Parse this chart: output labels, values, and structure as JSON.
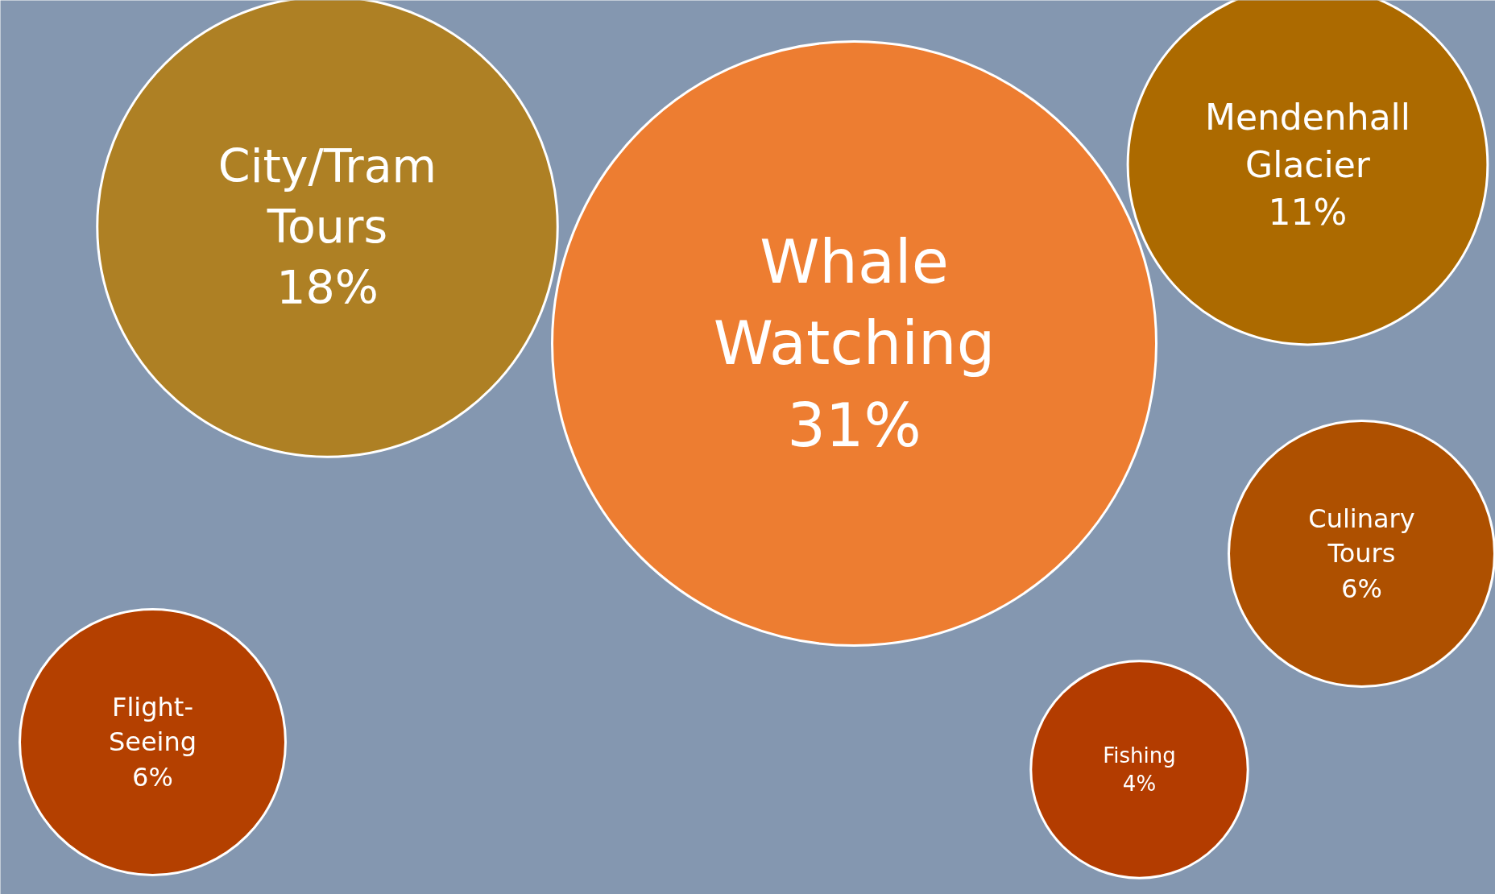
{
  "chart_data": {
    "type": "other",
    "categories": [
      "Whale Watching",
      "City/Tram Tours",
      "Mendenhall Glacier",
      "Culinary Tours",
      "Fishing",
      "Flight-Seeing"
    ],
    "values": [
      31,
      18,
      11,
      6,
      4,
      6
    ],
    "value_labels": [
      "31%",
      "18%",
      "11%",
      "6%",
      "4%",
      "6%"
    ],
    "colors": [
      "#ed7d31",
      "#ae8024",
      "#ac6a00",
      "#ae5000",
      "#b33c00",
      "#b44000"
    ]
  }
}
